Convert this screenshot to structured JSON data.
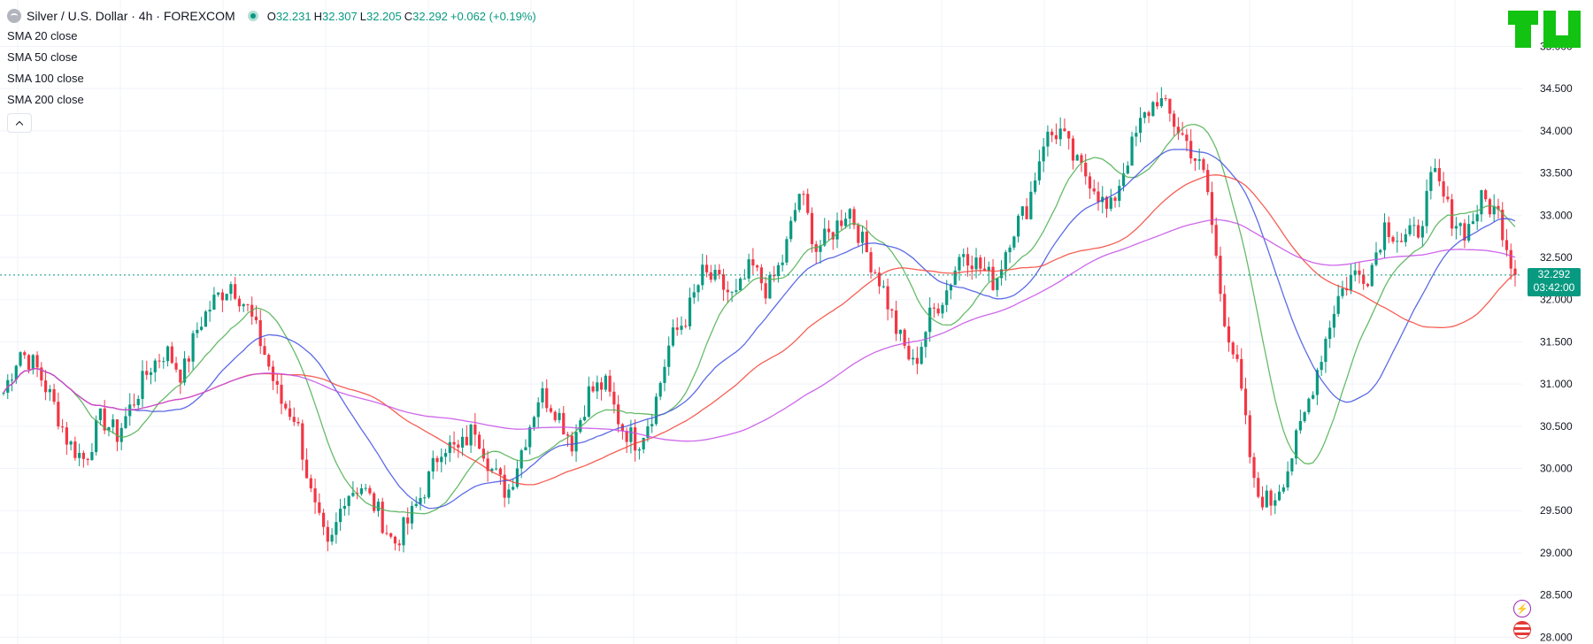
{
  "header": {
    "symbol": "Silver / U.S. Dollar · 4h · FOREXCOM",
    "icon": "silver-coin-icon",
    "ohlc": {
      "o_label": "O",
      "o": "32.231",
      "h_label": "H",
      "h": "32.307",
      "l_label": "L",
      "l": "32.205",
      "c_label": "C",
      "c": "32.292"
    },
    "change": "+0.062 (+0.19%)"
  },
  "indicators": [
    "SMA 20 close",
    "SMA 50 close",
    "SMA 100 close",
    "SMA 200 close"
  ],
  "price_tag": {
    "price": "32.292",
    "countdown": "03:42:00"
  },
  "colors": {
    "up": "#089981",
    "down": "#f23645",
    "sma20": "#4caf50",
    "sma50": "#3f51e0",
    "sma100": "#f44336",
    "sma200": "#c54ce6",
    "accent": "#089981"
  },
  "chart_data": {
    "type": "line",
    "ylim": [
      27.92,
      35.55
    ],
    "yticks": [
      "28.000",
      "28.500",
      "29.000",
      "29.500",
      "30.000",
      "30.500",
      "31.000",
      "31.500",
      "32.000",
      "32.500",
      "33.000",
      "33.500",
      "34.000",
      "34.500",
      "35.000"
    ],
    "last_price": 32.292,
    "price_series": [
      30.9,
      31.4,
      31.2,
      30.8,
      30.3,
      30.1,
      30.6,
      30.4,
      30.8,
      31.2,
      31.4,
      31.1,
      31.7,
      32.0,
      32.2,
      31.9,
      31.4,
      30.8,
      30.6,
      29.6,
      29.0,
      29.7,
      29.8,
      29.5,
      29.1,
      29.4,
      29.8,
      30.3,
      30.2,
      30.5,
      30.0,
      29.7,
      30.3,
      30.9,
      30.7,
      30.3,
      30.9,
      31.0,
      30.5,
      30.3,
      30.7,
      31.5,
      31.8,
      32.3,
      32.2,
      32.0,
      32.4,
      32.1,
      32.5,
      33.3,
      32.6,
      32.8,
      33.1,
      32.6,
      32.2,
      31.6,
      31.2,
      31.8,
      32.1,
      32.6,
      32.4,
      32.2,
      32.8,
      33.1,
      33.9,
      34.0,
      33.6,
      33.4,
      33.0,
      33.6,
      34.1,
      34.4,
      34.1,
      33.8,
      33.4,
      31.9,
      31.1,
      29.7,
      29.6,
      30.0,
      30.6,
      31.3,
      32.0,
      32.3,
      32.3,
      32.9,
      32.7,
      32.8,
      33.5,
      33.0,
      32.8,
      33.2,
      33.0,
      32.29
    ]
  }
}
